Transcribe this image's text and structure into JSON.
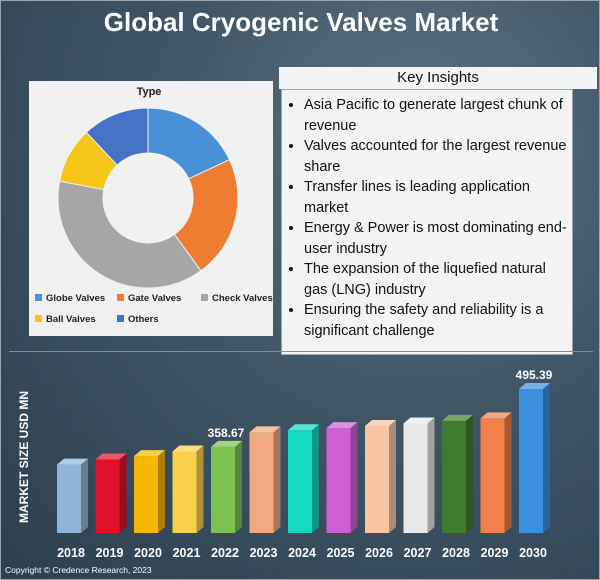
{
  "title": "Global Cryogenic Valves Market",
  "donut": {
    "title": "Type",
    "slices": [
      {
        "name": "Globe Valves",
        "value": 18,
        "color": "#4a90d9"
      },
      {
        "name": "Gate Valves",
        "value": 22,
        "color": "#ef7d31"
      },
      {
        "name": "Check Valves",
        "value": 38,
        "color": "#a6a6a6"
      },
      {
        "name": "Ball Valves",
        "value": 10,
        "color": "#f5c518"
      },
      {
        "name": "Others",
        "value": 12,
        "color": "#4472c4"
      }
    ]
  },
  "insights": {
    "title": "Key Insights",
    "items": [
      "Asia Pacific to generate largest chunk of revenue",
      "Valves accounted for the largest revenue share",
      "Transfer lines is leading application market",
      "Energy & Power is most dominating end-user industry",
      "The expansion of the liquefied natural gas (LNG) industry",
      "Ensuring the safety and reliability is a significant challenge"
    ]
  },
  "chart_data": {
    "type": "bar",
    "title": "",
    "xlabel": "",
    "ylabel": "MARKET SIZE USD MN",
    "categories": [
      "2018",
      "2019",
      "2020",
      "2021",
      "2022",
      "2023",
      "2024",
      "2025",
      "2026",
      "2027",
      "2028",
      "2029",
      "2030"
    ],
    "values": [
      317,
      329,
      337,
      348,
      358.67,
      393,
      398,
      403,
      408,
      414,
      420,
      426,
      495.39
    ],
    "data_labels": {
      "2022": "358.67",
      "2030": "495.39"
    },
    "bar_colors": [
      "#8fb4d8",
      "#e0102a",
      "#f5b800",
      "#fad04a",
      "#7cc24f",
      "#f0a880",
      "#14d8c0",
      "#cf5fd4",
      "#f7c5a4",
      "#e8e8e8",
      "#3f7a2e",
      "#f07f4a",
      "#3d8fe0"
    ],
    "ylim": [
      250,
      500
    ],
    "grid": false
  },
  "copyright": "Copyright © Credence Research, 2023"
}
